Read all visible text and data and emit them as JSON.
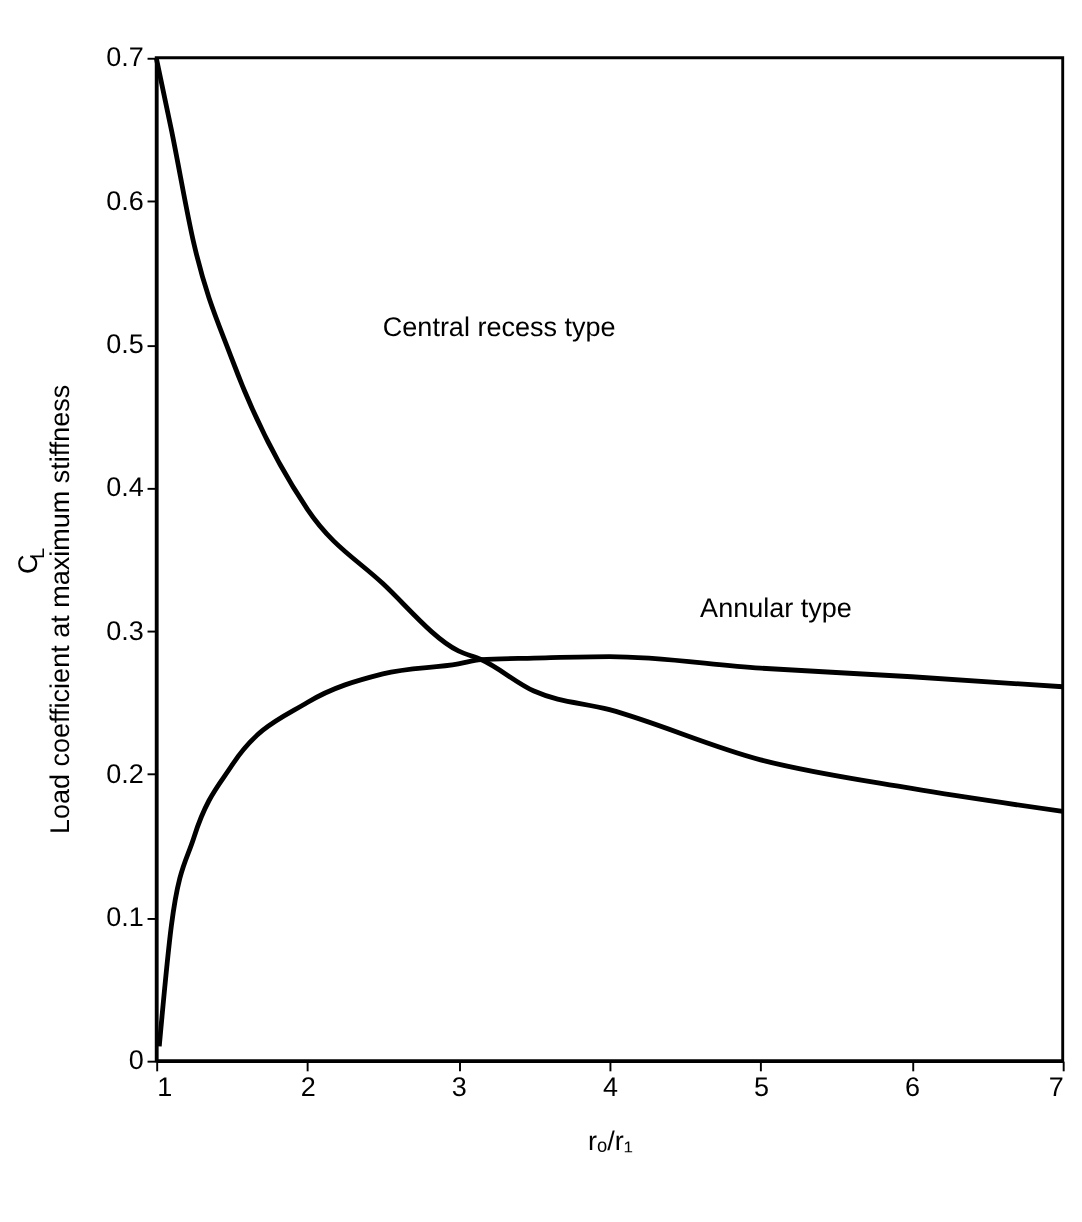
{
  "chart_data": {
    "type": "line",
    "xlabel": "rₒ/r₁",
    "ylabel": "C$_{L}$\nLoad coefficient at maximum stiffness",
    "xlim": [
      1,
      7
    ],
    "xticks": [
      1,
      2,
      3,
      4,
      5,
      6,
      7
    ],
    "ylim": [
      0,
      0.7
    ],
    "yticks": [
      0,
      0.1,
      0.2,
      0.3,
      0.4,
      0.5,
      0.6,
      0.7
    ],
    "grid": false,
    "marker": "none",
    "line_style": "solid",
    "series": [
      {
        "color": "#000000",
        "x": [
          1,
          1.1,
          1.25,
          1.5,
          2,
          2.5,
          3,
          3.15,
          3.5,
          4,
          5,
          6,
          7
        ],
        "values": [
          0.7,
          0.65,
          0.57,
          0.49,
          0.385,
          0.333,
          0.286,
          0.28,
          0.258,
          0.245,
          0.21,
          0.19,
          0.174
        ]
      },
      {
        "color": "#000000",
        "x": [
          1.02,
          1.1,
          1.25,
          1.5,
          2,
          2.5,
          3,
          3.15,
          3.5,
          4,
          5,
          6,
          7
        ],
        "values": [
          0.01,
          0.094,
          0.156,
          0.206,
          0.25,
          0.27,
          0.277,
          0.28,
          0.281,
          0.282,
          0.274,
          0.268,
          0.261
        ]
      }
    ],
    "annotations": [
      "Central recess type",
      "Annular type"
    ]
  }
}
